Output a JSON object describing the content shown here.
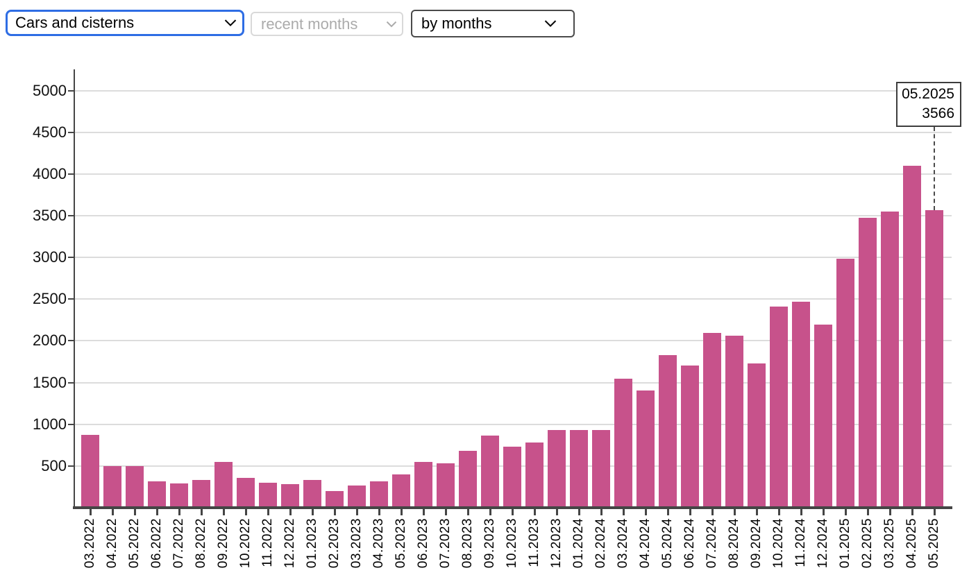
{
  "controls": {
    "dataset_select": {
      "value": "Cars and cisterns"
    },
    "range_select": {
      "value": "recent months",
      "disabled": true
    },
    "grouping_select": {
      "value": "by months"
    }
  },
  "tooltip": {
    "label": "05.2025",
    "value": "3566"
  },
  "colors": {
    "bar": "#c7528b",
    "focus_border": "#2e6de4",
    "axis": "#454545",
    "grid": "#dcdcdc"
  },
  "chart_data": {
    "type": "bar",
    "title": "",
    "xlabel": "",
    "ylabel": "",
    "categories": [
      "03.2022",
      "04.2022",
      "05.2022",
      "06.2022",
      "07.2022",
      "08.2022",
      "09.2022",
      "10.2022",
      "11.2022",
      "12.2022",
      "01.2023",
      "02.2023",
      "03.2023",
      "04.2023",
      "05.2023",
      "06.2023",
      "07.2023",
      "08.2023",
      "09.2023",
      "10.2023",
      "11.2023",
      "12.2023",
      "01.2024",
      "02.2024",
      "03.2024",
      "04.2024",
      "05.2024",
      "06.2024",
      "07.2024",
      "08.2024",
      "09.2024",
      "10.2024",
      "11.2024",
      "12.2024",
      "01.2025",
      "02.2025",
      "03.2025",
      "04.2025",
      "05.2025"
    ],
    "values": [
      870,
      500,
      500,
      315,
      295,
      330,
      550,
      355,
      300,
      285,
      335,
      200,
      265,
      315,
      395,
      550,
      530,
      680,
      865,
      735,
      780,
      930,
      930,
      930,
      1545,
      1405,
      1825,
      1700,
      2095,
      2060,
      1730,
      2410,
      2465,
      2195,
      2985,
      3475,
      3550,
      4095,
      3566
    ],
    "yticks": [
      500,
      1000,
      1500,
      2000,
      2500,
      3000,
      3500,
      4000,
      4500,
      5000
    ],
    "ylim": [
      0,
      5250
    ],
    "grid": true,
    "legend": false,
    "annotation": {
      "category": "05.2025",
      "value": 3566
    }
  }
}
